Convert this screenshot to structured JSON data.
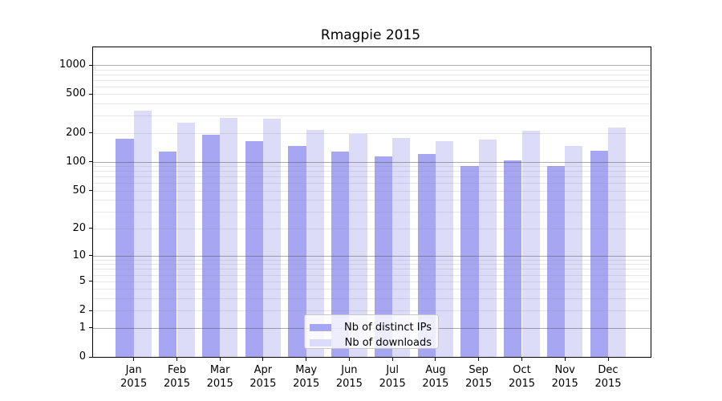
{
  "chart_data": {
    "type": "bar",
    "title": "Rmagpie 2015",
    "year_label": "2015",
    "categories": [
      "Jan",
      "Feb",
      "Mar",
      "Apr",
      "May",
      "Jun",
      "Jul",
      "Aug",
      "Sep",
      "Oct",
      "Nov",
      "Dec"
    ],
    "series": [
      {
        "name": "Nb of distinct IPs",
        "color": "#a6a6f2",
        "values": [
          175,
          128,
          192,
          165,
          146,
          128,
          115,
          121,
          90,
          104,
          90,
          130
        ]
      },
      {
        "name": "Nb of downloads",
        "color": "#dcdcf8",
        "values": [
          340,
          253,
          287,
          278,
          214,
          195,
          178,
          163,
          172,
          211,
          145,
          227
        ]
      }
    ],
    "y_axis": {
      "scale": "log10(1+x)",
      "tick_values": [
        0,
        1,
        2,
        5,
        10,
        20,
        50,
        100,
        200,
        500,
        1000
      ],
      "tick_labels": [
        "0",
        "1",
        "2",
        "5",
        "10",
        "20",
        "50",
        "100",
        "200",
        "500",
        "1000"
      ],
      "range": [
        0,
        1500
      ],
      "grid": "on",
      "major_grid_values": [
        1,
        10,
        100,
        1000
      ]
    },
    "xlabel": "",
    "ylabel": "",
    "legend_position": "lower-center"
  }
}
